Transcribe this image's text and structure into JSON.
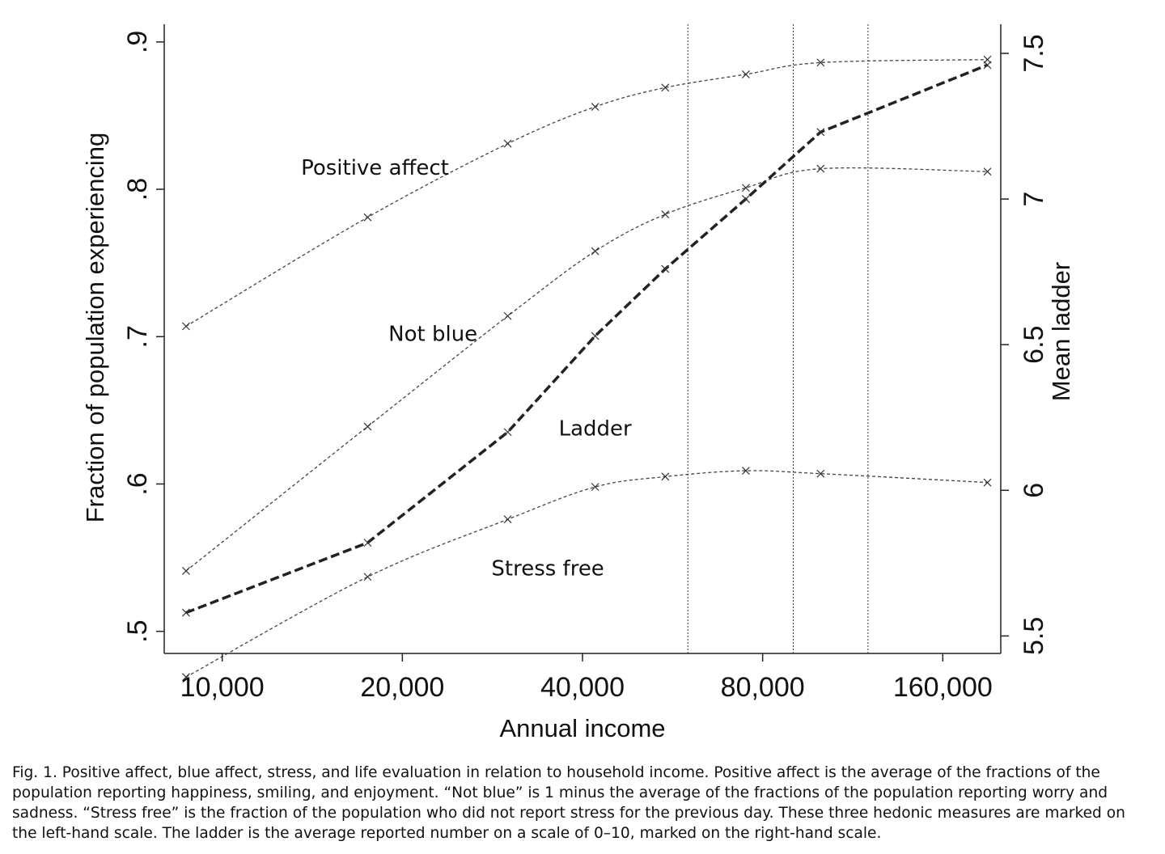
{
  "chart_data": {
    "type": "line",
    "xlabel": "Annual income",
    "ylabel_left": "Fraction of population experiencing",
    "ylabel_right": "Mean ladder",
    "x_scale": "log",
    "x_ticks": [
      10000,
      20000,
      40000,
      80000,
      160000
    ],
    "x_tick_labels": [
      "10,000",
      "20,000",
      "40,000",
      "80,000",
      "160,000"
    ],
    "xlim": [
      8000,
      200000
    ],
    "y_left_ticks": [
      0.5,
      0.6,
      0.7,
      0.8,
      0.9
    ],
    "y_left_tick_labels": [
      ".5",
      ".6",
      ".7",
      ".8",
      ".9"
    ],
    "ylim_left": [
      0.485,
      0.912
    ],
    "y_right_ticks": [
      5.5,
      6,
      6.5,
      7,
      7.5
    ],
    "y_right_tick_labels": [
      "5.5",
      "6",
      "6.5",
      "7",
      "7.5"
    ],
    "ylim_right": [
      5.44,
      7.6
    ],
    "vertical_lines": [
      60000,
      90000,
      120000
    ],
    "grid": false,
    "legend": "none",
    "x": [
      8700,
      17500,
      30000,
      42000,
      55000,
      75000,
      100000,
      190000
    ],
    "series": [
      {
        "name": "Positive affect",
        "axis": "left",
        "style": "dotted",
        "values": [
          0.707,
          0.781,
          0.831,
          0.856,
          0.869,
          0.878,
          0.886,
          0.888
        ]
      },
      {
        "name": "Not blue",
        "axis": "left",
        "style": "dotted",
        "values": [
          0.541,
          0.639,
          0.714,
          0.758,
          0.783,
          0.801,
          0.814,
          0.812
        ]
      },
      {
        "name": "Stress free",
        "axis": "left",
        "style": "dotted",
        "values": [
          0.469,
          0.537,
          0.576,
          0.598,
          0.605,
          0.609,
          0.607,
          0.601
        ]
      },
      {
        "name": "Ladder",
        "axis": "right",
        "style": "dashed-bold",
        "values": [
          5.58,
          5.82,
          6.2,
          6.53,
          6.76,
          7.0,
          7.23,
          7.46
        ]
      }
    ],
    "series_labels": [
      {
        "text": "Positive affect",
        "x": 18000,
        "y": 0.81
      },
      {
        "text": "Not blue",
        "x": 22500,
        "y": 0.697
      },
      {
        "text": "Ladder",
        "x": 42000,
        "y": 0.633
      },
      {
        "text": "Stress free",
        "x": 35000,
        "y": 0.538
      }
    ]
  },
  "caption": "Fig. 1. Positive affect, blue affect, stress, and life evaluation in relation to household income. Positive affect is the average of the fractions of the population reporting happiness, smiling, and enjoyment. “Not blue” is 1 minus the average of the fractions of the population reporting worry and sadness. “Stress free” is the fraction of the population who did not report stress for the previous day. These three hedonic measures are marked on the left-hand scale. The ladder is the average reported number on a scale of 0–10, marked on the right-hand scale."
}
